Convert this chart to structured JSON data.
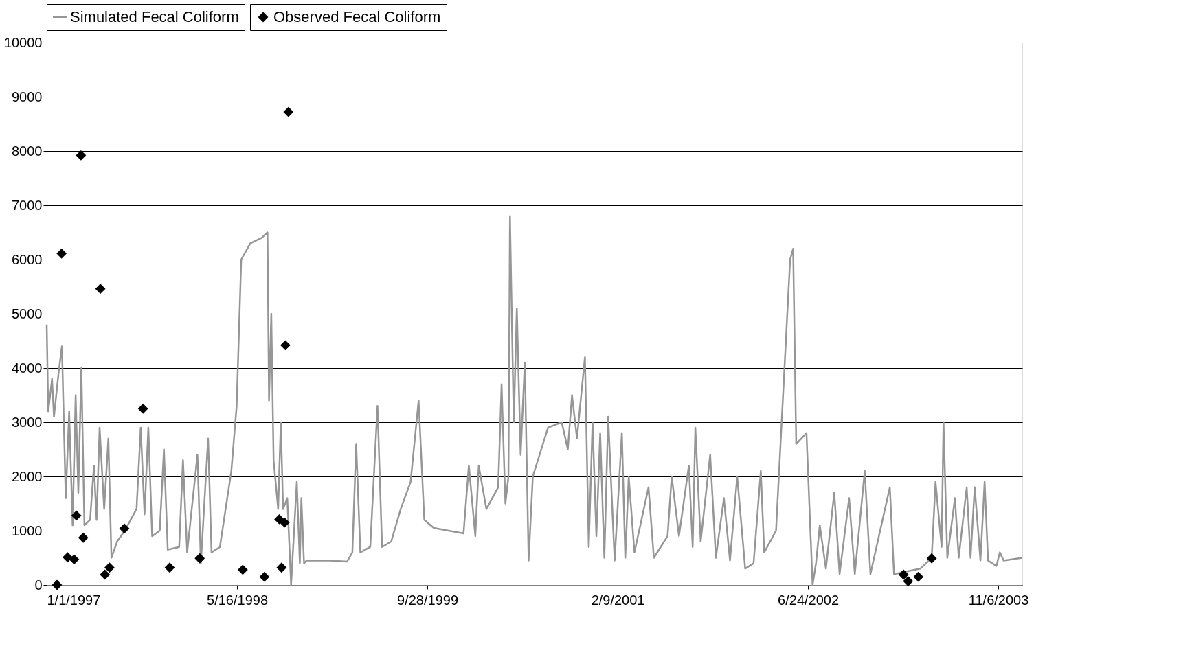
{
  "chart_data": {
    "type": "line",
    "xlim": [
      "1997-01-01",
      "2004-01-08"
    ],
    "xticks": [
      {
        "value": "1997-01-01",
        "label": "1/1/1997"
      },
      {
        "value": "1998-05-16",
        "label": "5/16/1998"
      },
      {
        "value": "1999-09-28",
        "label": "9/28/1999"
      },
      {
        "value": "2001-02-09",
        "label": "2/9/2001"
      },
      {
        "value": "2002-06-24",
        "label": "6/24/2002"
      },
      {
        "value": "2003-11-06",
        "label": "11/6/2003"
      }
    ],
    "ylim": [
      0,
      10000
    ],
    "yticks": [
      0,
      1000,
      2000,
      3000,
      4000,
      5000,
      6000,
      7000,
      8000,
      9000,
      10000
    ],
    "grid": "y",
    "legend": "top",
    "series": [
      {
        "name": "Simulated Fecal Coliform",
        "color": "#969696",
        "marker": "none",
        "x": [
          "1997-01-01",
          "1997-01-05",
          "1997-01-15",
          "1997-01-20",
          "1997-02-01",
          "1997-02-10",
          "1997-02-20",
          "1997-03-01",
          "1997-03-10",
          "1997-03-18",
          "1997-03-25",
          "1997-04-02",
          "1997-04-10",
          "1997-04-25",
          "1997-05-05",
          "1997-05-12",
          "1997-05-20",
          "1997-06-01",
          "1997-06-12",
          "1997-06-20",
          "1997-07-05",
          "1997-07-25",
          "1997-08-25",
          "1997-09-05",
          "1997-09-15",
          "1997-09-25",
          "1997-10-05",
          "1997-10-25",
          "1997-11-05",
          "1997-11-15",
          "1997-12-15",
          "1997-12-25",
          "1998-01-05",
          "1998-02-01",
          "1998-02-10",
          "1998-03-01",
          "1998-03-10",
          "1998-04-01",
          "1998-05-01",
          "1998-05-15",
          "1998-05-27",
          "1998-06-20",
          "1998-07-20",
          "1998-08-04",
          "1998-08-08",
          "1998-08-14",
          "1998-08-20",
          "1998-09-01",
          "1998-09-08",
          "1998-09-14",
          "1998-09-25",
          "1998-10-05",
          "1998-10-20",
          "1998-10-28",
          "1998-11-01",
          "1998-11-08",
          "1998-11-15",
          "1999-01-15",
          "1999-03-01",
          "1999-03-15",
          "1999-03-25",
          "1999-04-05",
          "1999-05-01",
          "1999-05-20",
          "1999-06-01",
          "1999-06-25",
          "1999-07-20",
          "1999-08-15",
          "1999-09-05",
          "1999-09-20",
          "1999-10-15",
          "2000-01-01",
          "2000-01-15",
          "2000-02-01",
          "2000-02-10",
          "2000-03-01",
          "2000-04-01",
          "2000-04-10",
          "2000-04-20",
          "2000-04-28",
          "2000-05-02",
          "2000-05-12",
          "2000-05-20",
          "2000-05-30",
          "2000-06-10",
          "2000-06-20",
          "2000-07-01",
          "2000-08-10",
          "2000-09-15",
          "2000-10-01",
          "2000-10-12",
          "2000-10-25",
          "2000-11-15",
          "2000-11-25",
          "2000-12-05",
          "2000-12-15",
          "2000-12-25",
          "2001-01-05",
          "2001-01-15",
          "2001-02-01",
          "2001-02-20",
          "2001-03-01",
          "2001-03-10",
          "2001-03-25",
          "2001-05-01",
          "2001-05-15",
          "2001-06-20",
          "2001-07-01",
          "2001-07-20",
          "2001-08-15",
          "2001-08-25",
          "2001-09-01",
          "2001-09-15",
          "2001-10-10",
          "2001-10-25",
          "2001-11-15",
          "2001-12-01",
          "2001-12-20",
          "2002-01-10",
          "2002-02-01",
          "2002-02-20",
          "2002-03-01",
          "2002-04-01",
          "2002-05-08",
          "2002-05-16",
          "2002-05-24",
          "2002-06-20",
          "2002-07-06",
          "2002-07-15",
          "2002-07-25",
          "2002-08-10",
          "2002-09-01",
          "2002-09-15",
          "2002-10-10",
          "2002-10-25",
          "2002-11-20",
          "2002-12-05",
          "2003-01-25",
          "2003-02-05",
          "2003-04-15",
          "2003-05-15",
          "2003-05-25",
          "2003-06-10",
          "2003-06-15",
          "2003-06-25",
          "2003-07-15",
          "2003-07-25",
          "2003-08-15",
          "2003-08-25",
          "2003-09-05",
          "2003-09-20",
          "2003-10-01",
          "2003-10-10",
          "2003-11-01",
          "2003-11-10",
          "2003-11-20",
          "2004-01-08"
        ],
        "values": [
          4800,
          3200,
          3800,
          3100,
          3900,
          4400,
          1600,
          3200,
          1100,
          3500,
          1700,
          4000,
          1100,
          1200,
          2200,
          1200,
          2900,
          1400,
          2700,
          500,
          800,
          1000,
          1400,
          2900,
          1300,
          2900,
          900,
          1000,
          2500,
          650,
          700,
          2300,
          600,
          2400,
          400,
          2700,
          600,
          700,
          2100,
          3300,
          6000,
          6300,
          6400,
          6500,
          3400,
          5000,
          2300,
          1400,
          3000,
          1400,
          1600,
          0,
          1900,
          400,
          1600,
          400,
          450,
          450,
          430,
          600,
          2600,
          600,
          700,
          3300,
          700,
          800,
          1400,
          1900,
          3400,
          1200,
          1050,
          950,
          2200,
          900,
          2200,
          1400,
          1800,
          3700,
          1500,
          2000,
          6800,
          3000,
          5100,
          2400,
          4100,
          450,
          2000,
          2900,
          3000,
          2500,
          3500,
          2700,
          4200,
          700,
          3000,
          900,
          2800,
          500,
          3100,
          450,
          2800,
          500,
          2000,
          600,
          1800,
          500,
          900,
          2000,
          900,
          2200,
          700,
          2900,
          800,
          2400,
          500,
          1600,
          450,
          2000,
          300,
          400,
          2100,
          600,
          1000,
          6000,
          6200,
          2600,
          2800,
          0,
          400,
          1100,
          300,
          1700,
          200,
          1600,
          200,
          2100,
          200,
          1800,
          200,
          300,
          500,
          1900,
          700,
          3000,
          500,
          1600,
          500,
          1800,
          500,
          1800,
          450,
          1900,
          450,
          350,
          600,
          450,
          500
        ]
      },
      {
        "name": "Observed Fecal Coliform",
        "type": "scatter",
        "color": "#000000",
        "marker": "diamond",
        "x": [
          "1997-01-28",
          "1997-02-09",
          "1997-02-25",
          "1997-03-14",
          "1997-03-20",
          "1997-04-01",
          "1997-04-07",
          "1997-05-22",
          "1997-06-03",
          "1997-06-15",
          "1997-07-24",
          "1997-09-11",
          "1997-11-20",
          "1998-02-07",
          "1998-05-31",
          "1998-07-27",
          "1998-09-04",
          "1998-09-10",
          "1998-09-18",
          "1998-09-20",
          "1998-09-28",
          "2003-03-02",
          "2003-03-14",
          "2003-04-10",
          "2003-05-15"
        ],
        "values": [
          0,
          6110,
          510,
          470,
          1280,
          7920,
          870,
          5460,
          190,
          320,
          1040,
          3250,
          320,
          490,
          280,
          150,
          1210,
          320,
          1150,
          4420,
          8720,
          190,
          70,
          150,
          490
        ]
      }
    ]
  }
}
